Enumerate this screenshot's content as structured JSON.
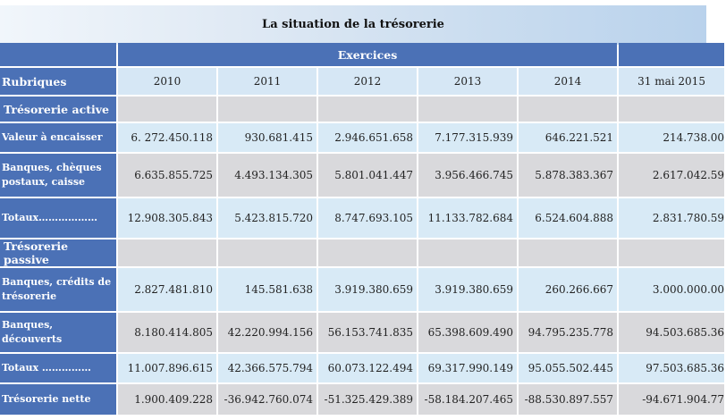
{
  "caption": "La situation de la trésorerie",
  "header": {
    "exercices": "Exercices",
    "rubriques": "Rubriques",
    "years": [
      "2010",
      "2011",
      "2012",
      "2013",
      "2014",
      "31 mai 2015"
    ]
  },
  "sections": {
    "active": "Trésorerie active",
    "passive": "Trésorerie passive"
  },
  "rows": {
    "valeur": {
      "label": "Valeur à encaisser",
      "values": [
        "6. 272.450.118",
        "930.681.415",
        "2.946.651.658",
        "7.177.315.939",
        "646.221.521",
        "214.738.00"
      ]
    },
    "banques_cheques": {
      "label": "Banques, chèques postaux, caisse",
      "values": [
        "6.635.855.725",
        "4.493.134.305",
        "5.801.041.447",
        "3.956.466.745",
        "5.878.383.367",
        "2.617.042.59"
      ]
    },
    "totaux_active": {
      "label": "Totaux………………",
      "values": [
        "12.908.305.843",
        "5.423.815.720",
        "8.747.693.105",
        "11.133.782.684",
        "6.524.604.888",
        "2.831.780.59"
      ]
    },
    "banques_credits": {
      "label": "Banques, crédits de trésorerie",
      "values": [
        "2.827.481.810",
        "145.581.638",
        "3.919.380.659",
        "3.919.380.659",
        "260.266.667",
        "3.000.000.00"
      ]
    },
    "banques_decouverts": {
      "label": "Banques, découverts",
      "values": [
        "8.180.414.805",
        "42.220.994.156",
        "56.153.741.835",
        "65.398.609.490",
        "94.795.235.778",
        "94.503.685.36"
      ]
    },
    "totaux_passive": {
      "label": "Totaux ……………",
      "values": [
        "11.007.896.615",
        "42.366.575.794",
        "60.073.122.494",
        "69.317.990.149",
        "95.055.502.445",
        "97.503.685.36"
      ]
    },
    "nette": {
      "label": "Trésorerie nette",
      "values": [
        "1.900.409.228",
        "-36.942.760.074",
        "-51.325.429.389",
        "-58.184.207.465",
        "-88.530.897.557",
        "-94.671.904.77"
      ]
    }
  }
}
